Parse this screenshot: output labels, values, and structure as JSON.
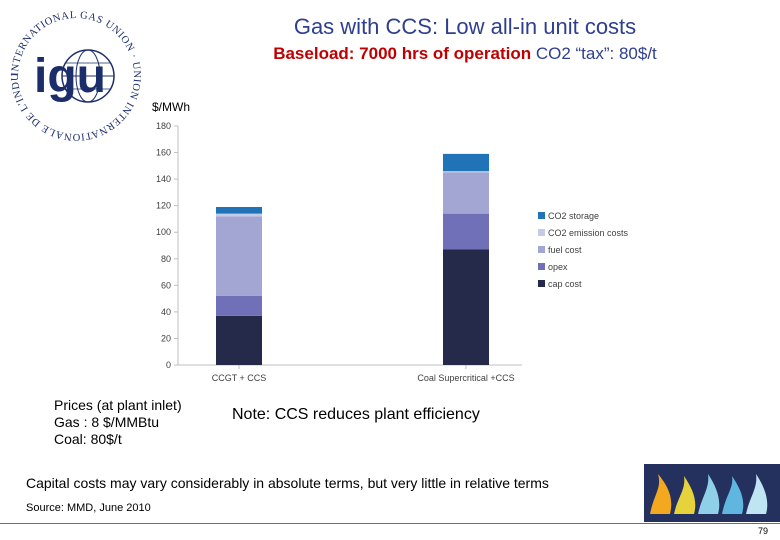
{
  "header": {
    "title": "Gas with CCS: Low all-in unit costs",
    "subtitle_red": "Baseload: 7000 hrs of operation",
    "subtitle_blue": "CO2 “tax”: 80$/t"
  },
  "logo": {
    "ring_text": "INTERNATIONAL GAS UNION · UNION INTERNATIONALE DE L'INDUSTRIE DU GAZ",
    "mark": "igu"
  },
  "chart_data": {
    "type": "bar",
    "stacked": true,
    "ylabel": "$/MWh",
    "ylim": [
      0,
      180
    ],
    "yticks": [
      0,
      20,
      40,
      60,
      80,
      100,
      120,
      140,
      160,
      180
    ],
    "categories": [
      "CCGT + CCS",
      "Coal Supercritical +CCS"
    ],
    "series": [
      {
        "name": "cap cost",
        "color": "#262a4a",
        "values": [
          37,
          87
        ]
      },
      {
        "name": "opex",
        "color": "#7070b8",
        "values": [
          15,
          27
        ]
      },
      {
        "name": "fuel cost",
        "color": "#a3a6d2",
        "values": [
          60,
          31
        ]
      },
      {
        "name": "CO2 emission costs",
        "color": "#c3cbe6",
        "values": [
          2,
          1
        ]
      },
      {
        "name": "CO2 storage",
        "color": "#1f73b6",
        "values": [
          5,
          13
        ]
      }
    ],
    "legend_order": [
      "CO2 storage",
      "CO2 emission costs",
      "fuel cost",
      "opex",
      "cap cost"
    ],
    "legend_position": "right",
    "grid": false
  },
  "notes": {
    "prices_line1": "Prices (at plant inlet)",
    "prices_line2": "Gas : 8  $/MMBtu",
    "prices_line3": "Coal: 80$/t",
    "efficiency": "Note: CCS reduces plant efficiency",
    "capital": "Capital costs may vary considerably in absolute terms, but very little in relative terms",
    "source": "Source: MMD, June 2010"
  },
  "footer": {
    "page_number": "79"
  }
}
